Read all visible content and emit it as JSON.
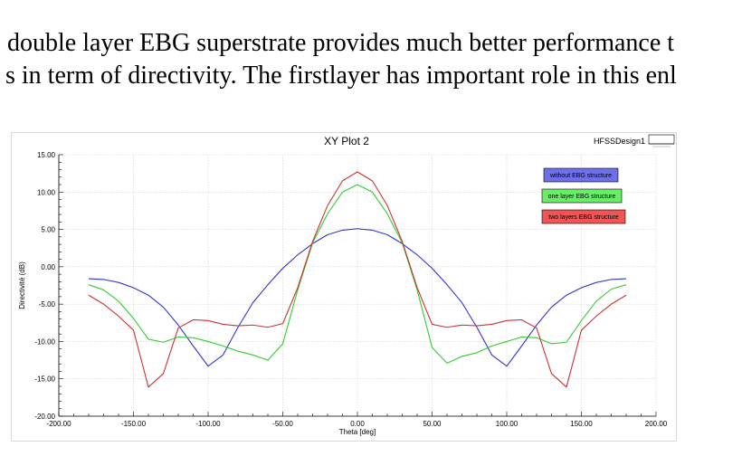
{
  "document": {
    "line1": "double layer EBG superstrate provides much better performance t",
    "line2": "s in term of directivity. The firstlayer has important role in this enl"
  },
  "plot": {
    "title": "XY Plot 2",
    "design_name": "HFSSDesign1"
  },
  "chart_data": {
    "type": "line",
    "title": "XY Plot 2",
    "xlabel": "Theta [deg]",
    "ylabel": "Directivité (dB)",
    "xlim": [
      -200,
      200
    ],
    "ylim": [
      -20,
      15
    ],
    "xticks": [
      -200,
      -150,
      -100,
      -50,
      0,
      50,
      100,
      150,
      200
    ],
    "xtick_labels": [
      "-200.00",
      "-150.00",
      "-100.00",
      "-50.00",
      "0.00",
      "50.00",
      "100.00",
      "150.00",
      "200.00"
    ],
    "yticks": [
      15,
      10,
      5,
      0,
      -5,
      -10,
      -15,
      -20
    ],
    "ytick_labels": [
      "15.00",
      "10.00",
      "5.00",
      "0.00",
      "-5.00",
      "-10.00",
      "-15.00",
      "-20.00"
    ],
    "grid": true,
    "legend_position": "top-right",
    "x": [
      -180,
      -170,
      -160,
      -150,
      -140,
      -130,
      -120,
      -110,
      -100,
      -90,
      -80,
      -70,
      -60,
      -50,
      -40,
      -30,
      -20,
      -10,
      0,
      10,
      20,
      30,
      40,
      50,
      60,
      70,
      80,
      90,
      100,
      110,
      120,
      130,
      140,
      150,
      160,
      170,
      180
    ],
    "series": [
      {
        "name": "without EBG structure",
        "color": "#3333cc",
        "legend_fill": "#6f6fe8",
        "values": [
          -1.6,
          -1.7,
          -2.1,
          -2.8,
          -3.8,
          -5.4,
          -7.8,
          -10.6,
          -13.3,
          -11.8,
          -8.1,
          -4.8,
          -2.4,
          -0.2,
          1.6,
          3.1,
          4.3,
          4.9,
          5.1,
          4.9,
          4.3,
          3.1,
          1.6,
          -0.2,
          -2.4,
          -4.8,
          -8.1,
          -11.8,
          -13.3,
          -10.6,
          -7.8,
          -5.4,
          -3.8,
          -2.8,
          -2.1,
          -1.7,
          -1.6
        ]
      },
      {
        "name": "one layer EBG structure",
        "color": "#33cc33",
        "legend_fill": "#66ee66",
        "values": [
          -2.4,
          -3.1,
          -4.6,
          -6.9,
          -9.7,
          -10.1,
          -9.4,
          -9.5,
          -10.0,
          -10.6,
          -11.3,
          -11.8,
          -12.5,
          -10.3,
          -3.1,
          3.2,
          7.1,
          10.0,
          11.0,
          10.0,
          7.1,
          3.2,
          -3.1,
          -10.8,
          -12.9,
          -12.0,
          -11.5,
          -10.6,
          -10.0,
          -9.4,
          -9.5,
          -10.3,
          -10.1,
          -7.2,
          -4.6,
          -3.0,
          -2.4
        ]
      },
      {
        "name": "two layers EBG structure",
        "color": "#cc3333",
        "legend_fill": "#ee5555",
        "values": [
          -3.8,
          -5.0,
          -6.6,
          -8.5,
          -16.1,
          -14.3,
          -8.2,
          -7.1,
          -7.2,
          -7.7,
          -7.9,
          -7.8,
          -8.1,
          -7.6,
          -2.8,
          3.4,
          8.2,
          11.5,
          12.7,
          11.5,
          8.2,
          3.4,
          -2.8,
          -7.7,
          -8.1,
          -7.8,
          -7.9,
          -7.7,
          -7.2,
          -7.1,
          -8.2,
          -14.3,
          -16.1,
          -8.5,
          -6.6,
          -5.0,
          -3.8
        ]
      }
    ]
  }
}
